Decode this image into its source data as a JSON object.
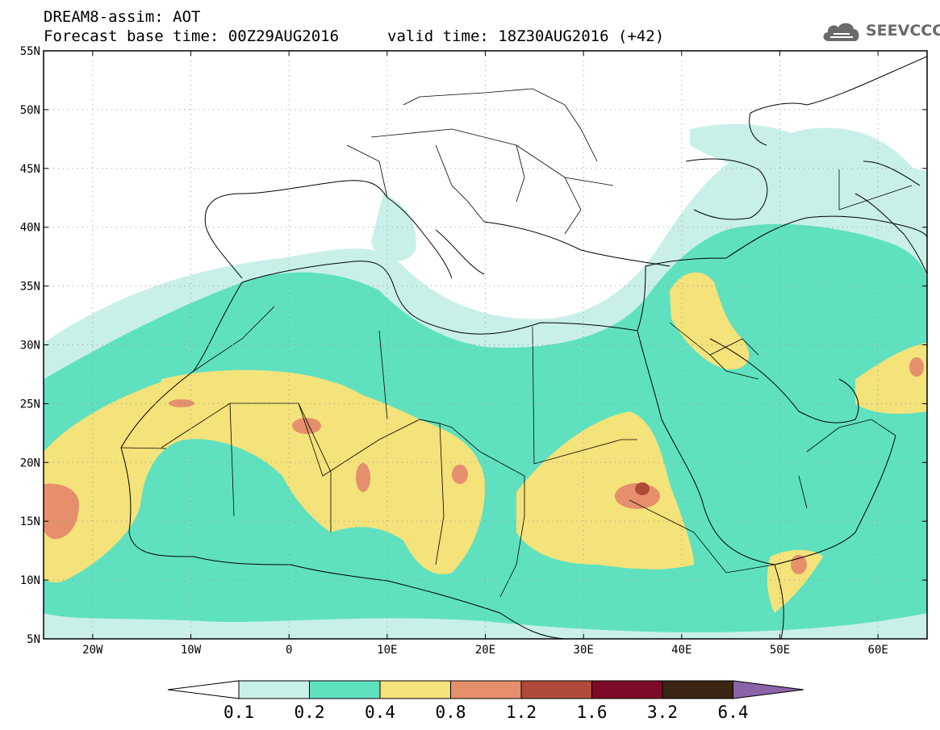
{
  "header": {
    "line1": "DREAM8-assim: AOT",
    "line2_base": "Forecast base time: 00Z29AUG2016",
    "line2_valid": "valid time: 18Z30AUG2016 (+42)"
  },
  "logo": {
    "text": "SEEVCCC",
    "icon": "cloud-icon"
  },
  "map": {
    "lon_range": [
      -25,
      65
    ],
    "lat_range": [
      5,
      55
    ],
    "lat_labels": [
      "55N",
      "50N",
      "45N",
      "40N",
      "35N",
      "30N",
      "25N",
      "20N",
      "15N",
      "10N",
      "5N"
    ],
    "lon_labels": [
      "20W",
      "10W",
      "0",
      "10E",
      "20E",
      "30E",
      "40E",
      "50E",
      "60E"
    ],
    "grid": "dotted"
  },
  "colorbar": {
    "labels": [
      "0.1",
      "0.2",
      "0.4",
      "0.8",
      "1.2",
      "1.6",
      "3.2",
      "6.4"
    ],
    "colors": [
      "#ffffff",
      "#c9f0e8",
      "#5fe1bf",
      "#f4e27a",
      "#e58f6c",
      "#b04a3b",
      "#7d0a28",
      "#3a2414",
      "#8a63a8"
    ]
  }
}
